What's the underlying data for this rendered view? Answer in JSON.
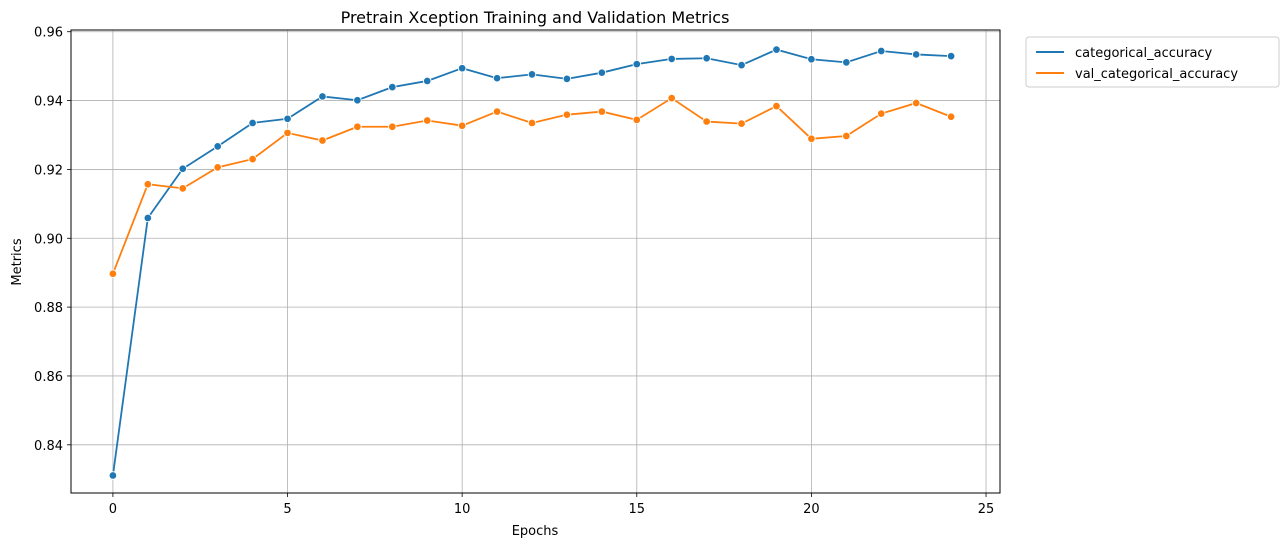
{
  "chart_data": {
    "type": "line",
    "title": "Pretrain Xception Training and Validation Metrics",
    "xlabel": "Epochs",
    "ylabel": "Metrics",
    "xlim": [
      -1.2,
      25.4
    ],
    "ylim": [
      0.826,
      0.9605
    ],
    "xticks": [
      0,
      5,
      10,
      15,
      20,
      25
    ],
    "yticks": [
      0.84,
      0.86,
      0.88,
      0.9,
      0.92,
      0.94,
      0.96
    ],
    "ytick_labels": [
      "0.84",
      "0.86",
      "0.88",
      "0.90",
      "0.92",
      "0.94",
      "0.96"
    ],
    "grid": true,
    "legend_position": "outside-top-right",
    "x": [
      0,
      1,
      2,
      3,
      4,
      5,
      6,
      7,
      8,
      9,
      10,
      11,
      12,
      13,
      14,
      15,
      16,
      17,
      18,
      19,
      20,
      21,
      22,
      23,
      24
    ],
    "series": [
      {
        "name": "categorical_accuracy",
        "color": "#1f77b4",
        "values": [
          0.8311,
          0.9059,
          0.9202,
          0.9267,
          0.9335,
          0.9347,
          0.9412,
          0.9401,
          0.9439,
          0.9457,
          0.9494,
          0.9465,
          0.9476,
          0.9463,
          0.9481,
          0.9506,
          0.9521,
          0.9523,
          0.9503,
          0.9548,
          0.952,
          0.9511,
          0.9544,
          0.9534,
          0.9529
        ]
      },
      {
        "name": "val_categorical_accuracy",
        "color": "#ff7f0e",
        "values": [
          0.8897,
          0.9157,
          0.9145,
          0.9206,
          0.923,
          0.9306,
          0.9284,
          0.9324,
          0.9324,
          0.9342,
          0.9327,
          0.9368,
          0.9335,
          0.9359,
          0.9368,
          0.9344,
          0.9407,
          0.9339,
          0.9333,
          0.9384,
          0.9289,
          0.9297,
          0.9362,
          0.9393,
          0.9353
        ]
      }
    ]
  }
}
